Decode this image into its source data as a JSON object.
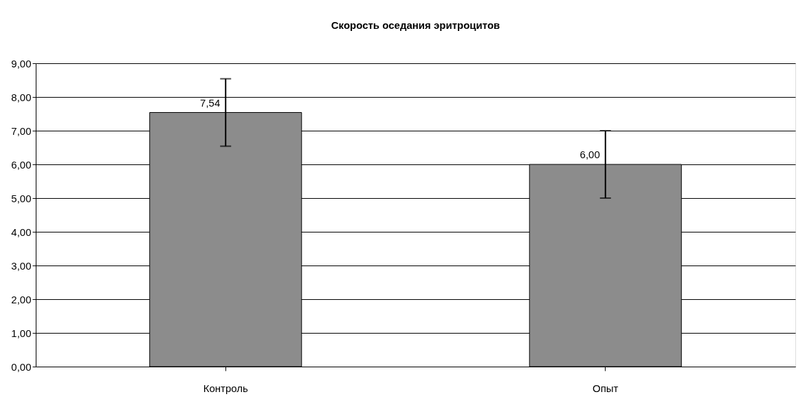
{
  "chart_data": {
    "type": "bar",
    "title": "Скорость оседания эритроцитов",
    "categories": [
      "Контроль",
      "Опыт"
    ],
    "values": [
      7.54,
      6.0
    ],
    "errors": [
      1.0,
      1.0
    ],
    "value_labels": [
      "7,54",
      "6,00"
    ],
    "color": "#8c8c8c",
    "ylim": [
      0,
      9
    ],
    "yticks": [
      {
        "value": 0,
        "label": "0,00"
      },
      {
        "value": 1,
        "label": "1,00"
      },
      {
        "value": 2,
        "label": "2,00"
      },
      {
        "value": 3,
        "label": "3,00"
      },
      {
        "value": 4,
        "label": "4,00"
      },
      {
        "value": 5,
        "label": "5,00"
      },
      {
        "value": 6,
        "label": "6,00"
      },
      {
        "value": 7,
        "label": "7,00"
      },
      {
        "value": 8,
        "label": "8,00"
      },
      {
        "value": 9,
        "label": "9,00"
      }
    ],
    "grid": "y"
  }
}
